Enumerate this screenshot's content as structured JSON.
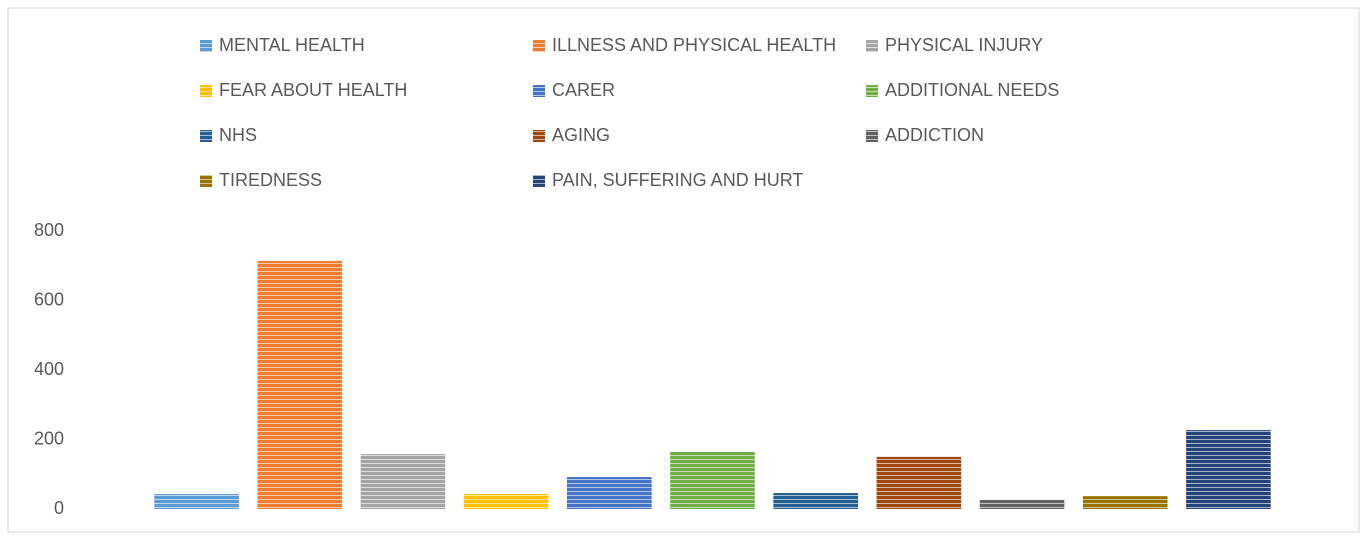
{
  "chart_data": {
    "type": "bar",
    "series": [
      {
        "name": "MENTAL HEALTH",
        "color": "#5b9bd5",
        "values": [
          43
        ]
      },
      {
        "name": "ILLNESS AND PHYSICAL HEALTH",
        "color": "#ed7d31",
        "values": [
          714
        ]
      },
      {
        "name": "PHYSICAL INJURY",
        "color": "#a5a5a5",
        "values": [
          158
        ]
      },
      {
        "name": "FEAR ABOUT HEALTH",
        "color": "#ffc000",
        "values": [
          43
        ]
      },
      {
        "name": "CARER",
        "color": "#4472c4",
        "values": [
          92
        ]
      },
      {
        "name": "ADDITIONAL NEEDS",
        "color": "#70ad47",
        "values": [
          164
        ]
      },
      {
        "name": "NHS",
        "color": "#255e91",
        "values": [
          46
        ]
      },
      {
        "name": "AGING",
        "color": "#9e480e",
        "values": [
          150
        ]
      },
      {
        "name": "ADDICTION",
        "color": "#636363",
        "values": [
          26
        ]
      },
      {
        "name": "TIREDNESS",
        "color": "#997300",
        "values": [
          37
        ]
      },
      {
        "name": "PAIN, SUFFERING AND HURT",
        "color": "#264478",
        "values": [
          227
        ]
      }
    ],
    "ylim": [
      0,
      800
    ],
    "yticks": [
      0,
      200,
      400,
      600,
      800
    ],
    "grid": false,
    "legend": "top"
  }
}
